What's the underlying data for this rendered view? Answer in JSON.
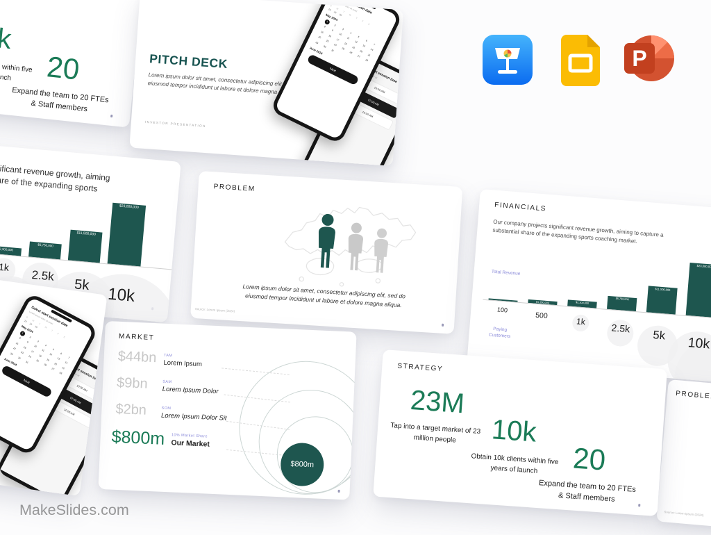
{
  "site": {
    "watermark": "MakeSlides.com"
  },
  "export_icons": {
    "keynote": "Apple Keynote",
    "google_slides": "Google Slides",
    "powerpoint": "Microsoft PowerPoint"
  },
  "colors": {
    "teal": "#1E564F",
    "title_teal": "#175350",
    "stat_green": "#1B7B57",
    "purple": "#8B8BD9",
    "light_gray_value": "#C8C8C8"
  },
  "cover": {
    "title": "PITCH DECK",
    "body": "Lorem ipsum dolor sit amet, consectetur adipiscing elit, sed do eiusmod tempor incididunt ut labore et dolore magna aliqua",
    "footer": "INVESTOR PRESENTATION",
    "phone_date": {
      "heading": "Select start session date",
      "subheading": "Lorem ipsum dolor sit amet",
      "weekdays": "S M T W T F S",
      "prev_days": "28 29 30",
      "month": "May 2024",
      "selected_day": 1,
      "total_days": 31,
      "next_month": "June 2024",
      "cta": "Next"
    },
    "phone_time": {
      "heading": "Select start session time",
      "subheading": "Lorem ipsum dolor sit",
      "slots": [
        "10:00 AM",
        "07:00 AM",
        "10:00 AM"
      ]
    }
  },
  "problem": {
    "title": "PROBLEM",
    "body": "Lorem ipsum dolor sit amet, consectetur adipiscing elit, sed do eiusmod tempor incididunt ut labore et dolore magna aliqua.",
    "source": "Source: Lorem Ipsum (2024)"
  },
  "financials": {
    "title": "FINANCIALS",
    "body": "Our company projects significant revenue growth, aiming to capture a substantial share of the expanding sports coaching market.",
    "y_axis_label": "Total Revenue",
    "x_axis_label": "Paying Customers",
    "chart_data": {
      "type": "bar",
      "categories": [
        "100",
        "500",
        "1k",
        "2.5k",
        "5k",
        "10k"
      ],
      "values": [
        230000,
        1150000,
        2300000,
        5750000,
        11500000,
        23000000
      ],
      "value_labels": [
        "",
        "$1,150,000",
        "$2,300,000",
        "$5,750,000",
        "$11,500,000",
        "$23,000,000"
      ],
      "xlabel": "Paying Customers",
      "ylabel": "Total Revenue"
    }
  },
  "market": {
    "title": "MARKET",
    "rows": [
      {
        "value": "$44bn",
        "tag": "TAM",
        "label": "Lorem Ipsum"
      },
      {
        "value": "$9bn",
        "tag": "SAM",
        "label": "Lorem Ipsum Dolor"
      },
      {
        "value": "$2bn",
        "tag": "SOM",
        "label": "Lorem Ipsum Dolor Sit"
      },
      {
        "value": "$800m",
        "tag": "10% Market Share",
        "label": "Our Market"
      }
    ],
    "bubble_label": "$800m"
  },
  "strategy": {
    "title": "STRATEGY",
    "stats": [
      {
        "value": "23M",
        "caption": "Tap into a target market of 23 million people"
      },
      {
        "value": "10k",
        "caption": "Obtain 10k clients within five years of launch"
      },
      {
        "value": "20",
        "caption": "Expand the team to 20 FTEs & Staff members"
      }
    ]
  }
}
